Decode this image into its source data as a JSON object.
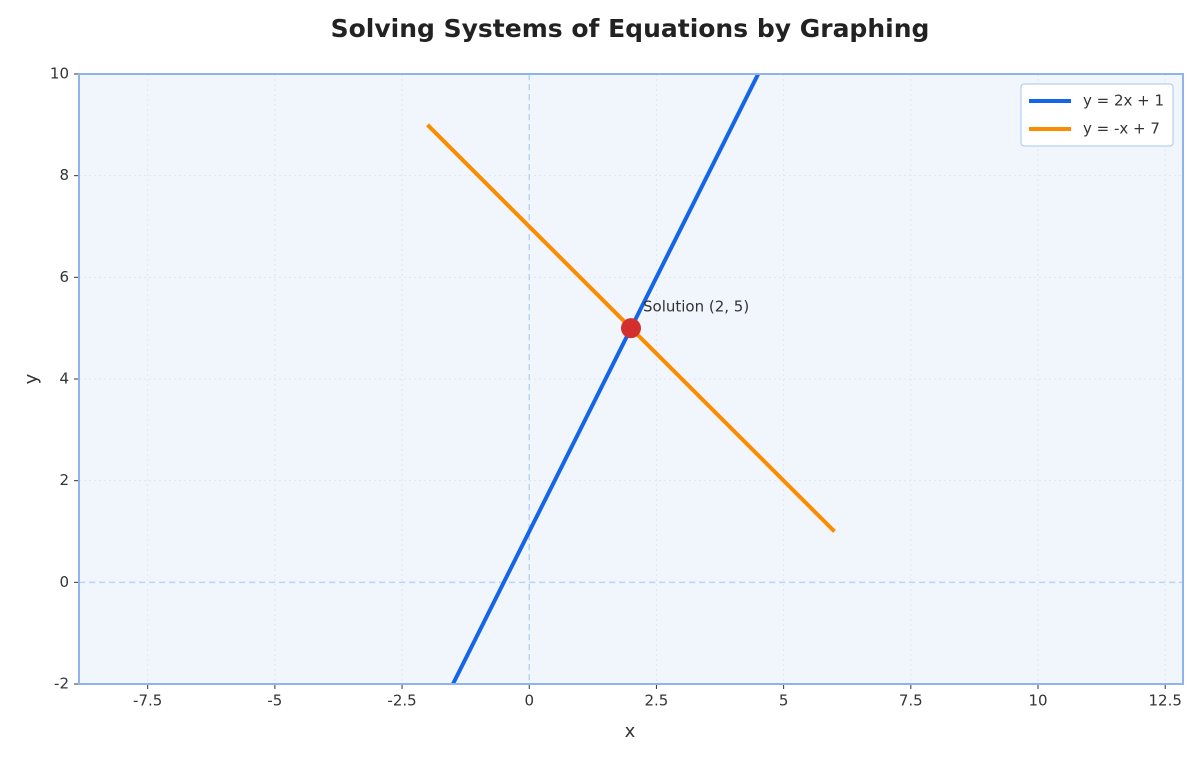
{
  "chart_data": {
    "type": "line",
    "title": "Solving Systems of Equations by Graphing",
    "xlabel": "x",
    "ylabel": "y",
    "series": [
      {
        "name": "y = 2x + 1",
        "color": "#1565e8",
        "x": [
          -1.5,
          4.5
        ],
        "values": [
          -2,
          10
        ]
      },
      {
        "name": "y = -x + 7",
        "color": "#fb8c00",
        "x": [
          -2,
          6
        ],
        "values": [
          9,
          1
        ]
      }
    ],
    "annotations": [
      {
        "text": "Solution (2, 5)",
        "x": 2,
        "y": 5,
        "color": "#d32f2f"
      }
    ],
    "xlim": [
      -8.85,
      12.85
    ],
    "ylim": [
      -2,
      10
    ],
    "xticks": [
      -7.5,
      -5,
      -2.5,
      0,
      2.5,
      5,
      7.5,
      10,
      12.5
    ],
    "yticks": [
      -2,
      0,
      2,
      4,
      6,
      8,
      10
    ],
    "grid": true,
    "zero_lines": true,
    "legend": "upper right"
  }
}
